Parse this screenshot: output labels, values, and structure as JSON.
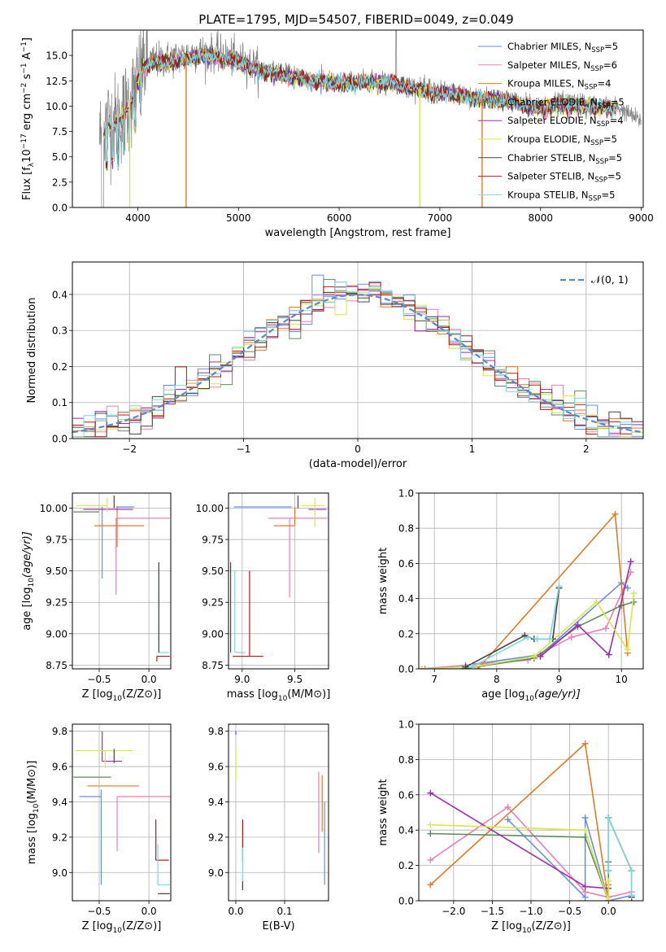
{
  "figure": {
    "title": "PLATE=1795, MJD=54507, FIBERID=0049, z=0.049"
  },
  "colors": {
    "CM": "#6a8fdc",
    "SM": "#e87fb6",
    "KM": "#e07b24",
    "CE": "#5e8c5e",
    "SE": "#9a2fb0",
    "KE": "#d6e84a",
    "CS": "#444444",
    "SS": "#b01818",
    "KS": "#7fd6dc",
    "gauss": "#5b87cc",
    "data": "#808080"
  },
  "models": [
    {
      "key": "CM",
      "label": "Chabrier MILES, N",
      "sub": "SSP",
      "nssp": "=5"
    },
    {
      "key": "SM",
      "label": "Salpeter MILES, N",
      "sub": "SSP",
      "nssp": "=6"
    },
    {
      "key": "KM",
      "label": "Kroupa MILES, N",
      "sub": "SSP",
      "nssp": "=4"
    },
    {
      "key": "CE",
      "label": "Chabrier ELODIE, N",
      "sub": "SSP",
      "nssp": "=5"
    },
    {
      "key": "SE",
      "label": "Salpeter ELODIE, N",
      "sub": "SSP",
      "nssp": "=4"
    },
    {
      "key": "KE",
      "label": "Kroupa ELODIE, N",
      "sub": "SSP",
      "nssp": "=5"
    },
    {
      "key": "CS",
      "label": "Chabrier STELIB, N",
      "sub": "SSP",
      "nssp": "=5"
    },
    {
      "key": "SS",
      "label": "Salpeter STELIB, N",
      "sub": "SSP",
      "nssp": "=5"
    },
    {
      "key": "KS",
      "label": "Kroupa STELIB, N",
      "sub": "SSP",
      "nssp": "=5"
    }
  ],
  "chart_data": [
    {
      "id": "spectrum",
      "type": "line",
      "xlabel": "wavelength [Angstrom, rest frame]",
      "ylabel": "Flux [f_λ 10^-17 erg cm^-2 s^-1 A^-1]",
      "xlim": [
        3350,
        9020
      ],
      "ylim": [
        0,
        17.5
      ],
      "xticks": [
        4000,
        5000,
        6000,
        7000,
        8000,
        9000
      ],
      "yticks": [
        0.0,
        2.5,
        5.0,
        7.5,
        10.0,
        12.5,
        15.0
      ],
      "legend": "top-right",
      "data_range": [
        3620,
        9000
      ],
      "continuum": [
        [
          3620,
          7.0
        ],
        [
          3700,
          8.5
        ],
        [
          3800,
          8.5
        ],
        [
          3950,
          11.0
        ],
        [
          4050,
          14.2
        ],
        [
          4200,
          14.5
        ],
        [
          4400,
          14.8
        ],
        [
          4600,
          15.3
        ],
        [
          4800,
          15.2
        ],
        [
          5000,
          14.6
        ],
        [
          5200,
          13.8
        ],
        [
          5500,
          13.2
        ],
        [
          5800,
          12.7
        ],
        [
          6000,
          12.5
        ],
        [
          6200,
          12.6
        ],
        [
          6500,
          12.6
        ],
        [
          6700,
          12.1
        ],
        [
          6900,
          11.6
        ],
        [
          7100,
          11.5
        ],
        [
          7300,
          11.1
        ],
        [
          7450,
          11.0
        ],
        [
          7700,
          10.7
        ],
        [
          8000,
          10.0
        ],
        [
          8200,
          10.5
        ],
        [
          8500,
          10.2
        ],
        [
          8750,
          10.0
        ],
        [
          9000,
          8.5
        ]
      ],
      "model_end": 8750,
      "model_dropouts": [
        {
          "x": 3920,
          "series": "KE"
        },
        {
          "x": 4480,
          "series": "KM"
        },
        {
          "x": 6800,
          "series": "KE"
        },
        {
          "x": 7420,
          "series": "KM"
        }
      ]
    },
    {
      "id": "residual_hist",
      "type": "histogram",
      "xlabel": "(data-model)/error",
      "ylabel": "Normed distribution",
      "xlim": [
        -2.5,
        2.5
      ],
      "ylim": [
        0,
        0.49
      ],
      "xticks": [
        -2,
        -1,
        0,
        1,
        2
      ],
      "yticks": [
        0.0,
        0.1,
        0.2,
        0.3,
        0.4
      ],
      "legend": "top-right",
      "legend_label": "𝒩(0, 1)",
      "bin_width": 0.1
    },
    {
      "id": "age_vs_Z",
      "type": "errorbar",
      "xlabel": "Z [log10(Z/Z⊙)]",
      "ylabel": "age [log10(age/yr)]",
      "xlim": [
        -0.77,
        0.22
      ],
      "ylim": [
        8.72,
        10.12
      ],
      "xticks": [
        -0.5,
        0.0
      ],
      "yticks": [
        8.75,
        9.0,
        9.25,
        9.5,
        9.75,
        10.0
      ],
      "points": [
        {
          "s": "CM",
          "x": -0.47,
          "y": 10.01,
          "xl": -0.32,
          "xh": 0.14,
          "yl": 0.57,
          "yh": 0.0
        },
        {
          "s": "SM",
          "x": -0.33,
          "y": 9.92,
          "xl": 0.0,
          "xh": 0.54,
          "yl": 0.61,
          "yh": 0.0
        },
        {
          "s": "KM",
          "x": -0.32,
          "y": 9.86,
          "xl": 0.23,
          "xh": 0.27,
          "yl": 0.17,
          "yh": 0.15
        },
        {
          "s": "CE",
          "x": -0.5,
          "y": 9.97,
          "xl": 0.26,
          "xh": 0.0,
          "yl": 0.0,
          "yh": 0.0
        },
        {
          "s": "SE",
          "x": -0.45,
          "y": 9.99,
          "xl": 0.21,
          "xh": 0.29,
          "yl": 0.0,
          "yh": 0.0
        },
        {
          "s": "KE",
          "x": -0.42,
          "y": 10.02,
          "xl": 0.31,
          "xh": 0.0,
          "yl": 0.05,
          "yh": 0.06
        },
        {
          "s": "CS",
          "x": -0.35,
          "y": 10.0,
          "xl": 0.0,
          "xh": 0.0,
          "yl": 0.0,
          "yh": 0.1
        },
        {
          "s": "SS",
          "x": 0.08,
          "y": 8.82,
          "xl": 0.0,
          "xh": 0.13,
          "yl": 0.04,
          "yh": 0.0
        },
        {
          "s": "KS",
          "x": 0.1,
          "y": 8.85,
          "xl": 0.0,
          "xh": 0.1,
          "yl": 0.0,
          "yh": 0.68
        },
        {
          "s": "CS",
          "x": 0.1,
          "y": 8.85,
          "xl": 0.0,
          "xh": 0.0,
          "yl": 0.0,
          "yh": 0.72
        }
      ]
    },
    {
      "id": "age_vs_mass",
      "type": "errorbar",
      "xlabel": "mass [log10(M/M⊙)]",
      "ylabel": "",
      "xlim": [
        8.87,
        9.82
      ],
      "ylim": [
        8.72,
        10.12
      ],
      "xticks": [
        9.0,
        9.5
      ],
      "yticks": [
        8.75,
        9.0,
        9.25,
        9.5,
        9.75,
        10.0
      ],
      "points": [
        {
          "s": "CM",
          "x": 9.47,
          "y": 10.01,
          "xl": 0.55,
          "xh": 0.0,
          "yl": 0.0,
          "yh": 0.0
        },
        {
          "s": "SM",
          "x": 9.45,
          "y": 9.92,
          "xl": 0.2,
          "xh": 0.36,
          "yl": 0.63,
          "yh": 0.0
        },
        {
          "s": "KM",
          "x": 9.5,
          "y": 9.86,
          "xl": 0.2,
          "xh": 0.0,
          "yl": 0.0,
          "yh": 0.15
        },
        {
          "s": "CE",
          "x": 9.57,
          "y": 9.97,
          "xl": 0.0,
          "xh": 0.0,
          "yl": 0.0,
          "yh": 0.0
        },
        {
          "s": "SE",
          "x": 9.63,
          "y": 9.99,
          "xl": 0.0,
          "xh": 0.17,
          "yl": 0.0,
          "yh": 0.0
        },
        {
          "s": "KE",
          "x": 9.69,
          "y": 10.02,
          "xl": 0.13,
          "xh": 0.09,
          "yl": 0.17,
          "yh": 0.06
        },
        {
          "s": "CS",
          "x": 9.53,
          "y": 10.0,
          "xl": 0.0,
          "xh": 0.0,
          "yl": 0.0,
          "yh": 0.1
        },
        {
          "s": "SS",
          "x": 9.07,
          "y": 8.82,
          "xl": 0.16,
          "xh": 0.13,
          "yl": 0.0,
          "yh": 0.68
        },
        {
          "s": "KS",
          "x": 8.93,
          "y": 8.85,
          "xl": 0.0,
          "xh": 0.1,
          "yl": 0.0,
          "yh": 0.65
        },
        {
          "s": "CS",
          "x": 8.89,
          "y": 8.85,
          "xl": 0.0,
          "xh": 0.0,
          "yl": 0.0,
          "yh": 0.72
        }
      ]
    },
    {
      "id": "weight_vs_age",
      "type": "line",
      "xlabel": "age [log10(age/yr)]",
      "ylabel": "mass weight",
      "xlim": [
        6.75,
        10.35
      ],
      "ylim": [
        0.0,
        1.0
      ],
      "xticks": [
        7,
        8,
        9,
        10
      ],
      "yticks": [
        0.0,
        0.2,
        0.4,
        0.6,
        0.8,
        1.0
      ],
      "series": [
        {
          "s": "CM",
          "x": [
            6.8,
            7.5,
            8.7,
            10.0,
            10.1
          ],
          "y": [
            0.0,
            0.02,
            0.08,
            0.49,
            0.46
          ]
        },
        {
          "s": "SM",
          "x": [
            6.85,
            7.8,
            8.5,
            9.2,
            9.75,
            10.15
          ],
          "y": [
            0.0,
            0.03,
            0.05,
            0.18,
            0.23,
            0.55
          ]
        },
        {
          "s": "KM",
          "x": [
            7.7,
            9.9,
            10.1
          ],
          "y": [
            0.0,
            0.88,
            0.09
          ]
        },
        {
          "s": "CE",
          "x": [
            7.45,
            8.6,
            9.3,
            10.0,
            10.2
          ],
          "y": [
            0.0,
            0.06,
            0.24,
            0.36,
            0.38
          ]
        },
        {
          "s": "SE",
          "x": [
            8.7,
            9.3,
            9.8,
            10.15
          ],
          "y": [
            0.07,
            0.25,
            0.08,
            0.61
          ]
        },
        {
          "s": "KE",
          "x": [
            6.8,
            7.6,
            8.6,
            9.6,
            10.1,
            10.2
          ],
          "y": [
            0.0,
            0.01,
            0.07,
            0.38,
            0.11,
            0.43
          ]
        },
        {
          "s": "CS",
          "x": [
            7.5,
            8.45,
            8.6,
            8.9,
            9.0
          ],
          "y": [
            0.01,
            0.19,
            0.17,
            0.17,
            0.46
          ]
        },
        {
          "s": "KS",
          "x": [
            7.6,
            8.5,
            8.65,
            8.85,
            9.0
          ],
          "y": [
            0.01,
            0.18,
            0.17,
            0.17,
            0.47
          ]
        }
      ]
    },
    {
      "id": "mass_vs_Z",
      "type": "errorbar",
      "xlabel": "Z [log10(Z/Z⊙)]",
      "ylabel": "mass [log10(M/M⊙)]",
      "xlim": [
        -0.77,
        0.22
      ],
      "ylim": [
        8.84,
        9.84
      ],
      "xticks": [
        -0.5,
        0.0
      ],
      "yticks": [
        9.0,
        9.2,
        9.4,
        9.6,
        9.8
      ],
      "points": [
        {
          "s": "CM",
          "x": -0.48,
          "y": 9.43,
          "xl": 0.22,
          "xh": 0.0,
          "yl": 0.5,
          "yh": 0.04
        },
        {
          "s": "SM",
          "x": -0.32,
          "y": 9.43,
          "xl": 0.0,
          "xh": 0.54,
          "yl": 0.31,
          "yh": 0.0
        },
        {
          "s": "KM",
          "x": -0.4,
          "y": 9.49,
          "xl": 0.22,
          "xh": 0.3,
          "yl": 0.0,
          "yh": 0.0
        },
        {
          "s": "CE",
          "x": -0.38,
          "y": 9.54,
          "xl": 0.38,
          "xh": 0.0,
          "yl": 0.0,
          "yh": 0.0
        },
        {
          "s": "SE",
          "x": -0.47,
          "y": 9.63,
          "xl": 0.0,
          "xh": 0.2,
          "yl": 0.0,
          "yh": 0.17
        },
        {
          "s": "KE",
          "x": -0.44,
          "y": 9.69,
          "xl": 0.3,
          "xh": 0.28,
          "yl": 0.1,
          "yh": 0.0
        },
        {
          "s": "CS",
          "x": -0.35,
          "y": 9.62,
          "xl": 0.0,
          "xh": 0.0,
          "yl": 0.0,
          "yh": 0.08
        },
        {
          "s": "SS",
          "x": 0.07,
          "y": 9.07,
          "xl": 0.0,
          "xh": 0.13,
          "yl": 0.0,
          "yh": 0.23
        },
        {
          "s": "KS",
          "x": 0.09,
          "y": 8.93,
          "xl": 0.0,
          "xh": 0.12,
          "yl": 0.0,
          "yh": 0.23
        },
        {
          "s": "CS",
          "x": 0.09,
          "y": 8.88,
          "xl": 0.0,
          "xh": 0.12,
          "yl": 0.0,
          "yh": 0.0
        }
      ]
    },
    {
      "id": "mass_vs_ebv",
      "type": "errorbar",
      "xlabel": "E(B-V)",
      "ylabel": "",
      "xlim": [
        -0.015,
        0.19
      ],
      "ylim": [
        8.84,
        9.84
      ],
      "xticks": [
        0.0,
        0.1
      ],
      "yticks": [
        9.0,
        9.2,
        9.4,
        9.6,
        9.8
      ],
      "points": [
        {
          "s": "CM",
          "x": 0.182,
          "y": 9.4,
          "xl": 0.0,
          "xh": 0.0,
          "yl": 0.47,
          "yh": 0.0
        },
        {
          "s": "SM",
          "x": 0.17,
          "y": 9.35,
          "xl": 0.0,
          "xh": 0.0,
          "yl": 0.24,
          "yh": 0.22
        },
        {
          "s": "KM",
          "x": 0.177,
          "y": 9.4,
          "xl": 0.0,
          "xh": 0.0,
          "yl": 0.17,
          "yh": 0.15
        },
        {
          "s": "SE",
          "x": 0.0,
          "y": 9.78,
          "xl": 0.0,
          "xh": 0.0,
          "yl": 0.0,
          "yh": 0.02
        },
        {
          "s": "KE",
          "x": 0.0,
          "y": 9.6,
          "xl": 0.0,
          "xh": 0.0,
          "yl": 0.08,
          "yh": 0.12
        },
        {
          "s": "SS",
          "x": 0.014,
          "y": 9.12,
          "xl": 0.0,
          "xh": 0.0,
          "yl": 0.06,
          "yh": 0.18
        },
        {
          "s": "KS",
          "x": 0.014,
          "y": 9.0,
          "xl": 0.0,
          "xh": 0.0,
          "yl": 0.1,
          "yh": 0.14
        },
        {
          "s": "CS",
          "x": 0.014,
          "y": 8.95,
          "xl": 0.0,
          "xh": 0.0,
          "yl": 0.05,
          "yh": 0.0
        }
      ]
    },
    {
      "id": "weight_vs_Z",
      "type": "line",
      "xlabel": "Z [log10(Z/Z⊙)]",
      "ylabel": "mass weight",
      "xlim": [
        -2.45,
        0.45
      ],
      "ylim": [
        0.0,
        1.0
      ],
      "xticks": [
        -2.0,
        -1.5,
        -1.0,
        -0.5,
        0.0
      ],
      "yticks": [
        0.0,
        0.2,
        0.4,
        0.6,
        0.8,
        1.0
      ],
      "series": [
        {
          "s": "CM",
          "x": [
            -1.3,
            -0.3,
            -0.3,
            0.0,
            0.3
          ],
          "y": [
            0.46,
            0.02,
            0.47,
            0.0,
            0.03
          ]
        },
        {
          "s": "SM",
          "x": [
            -2.3,
            -1.3,
            -0.3,
            0.0,
            0.3
          ],
          "y": [
            0.23,
            0.53,
            0.05,
            0.02,
            0.05
          ]
        },
        {
          "s": "KM",
          "x": [
            -2.3,
            -0.3,
            0.0,
            0.0
          ],
          "y": [
            0.09,
            0.89,
            0.0,
            0.09
          ]
        },
        {
          "s": "CE",
          "x": [
            -2.3,
            -0.3,
            0.0,
            0.0
          ],
          "y": [
            0.38,
            0.36,
            0.0,
            0.22
          ]
        },
        {
          "s": "SE",
          "x": [
            -2.3,
            -0.3,
            0.0
          ],
          "y": [
            0.61,
            0.08,
            0.07
          ]
        },
        {
          "s": "KE",
          "x": [
            -2.3,
            -0.3,
            0.0,
            0.0
          ],
          "y": [
            0.43,
            0.4,
            0.0,
            0.11
          ]
        },
        {
          "s": "CS",
          "x": [
            0.0,
            0.0,
            0.3,
            0.3
          ],
          "y": [
            0.17,
            0.47,
            0.17,
            0.02
          ]
        },
        {
          "s": "KS",
          "x": [
            0.0,
            0.0,
            0.3,
            0.3
          ],
          "y": [
            0.17,
            0.47,
            0.17,
            0.03
          ]
        }
      ]
    }
  ]
}
